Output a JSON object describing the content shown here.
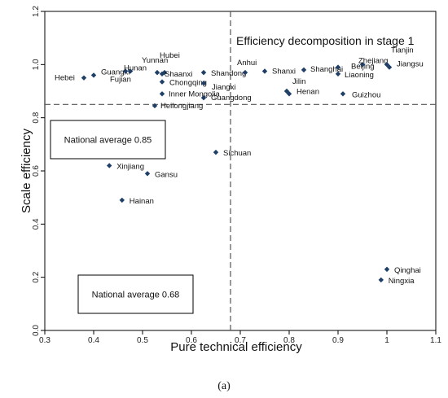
{
  "chart_data": {
    "type": "scatter",
    "xlabel": "Pure technical efficiency",
    "ylabel": "Scale efficiency",
    "xlim": [
      0.3,
      1.1
    ],
    "ylim": [
      0.0,
      1.2
    ],
    "x_ticks": [
      "0.3",
      "0.4",
      "0.5",
      "0.6",
      "0.7",
      "0.8",
      "0.9",
      "1",
      "1.1"
    ],
    "y_ticks": [
      "0.0",
      "0.2",
      "0.4",
      "0.6",
      "0.8",
      "1.0",
      "1.2"
    ],
    "annotation": "Efficiency decomposition in stage 1",
    "reference_lines": {
      "x_mean": 0.68,
      "y_mean": 0.85
    },
    "boxes": [
      {
        "label": "National average 0.85"
      },
      {
        "label": "National average 0.68"
      }
    ],
    "marker_color": "#1f3f66",
    "grid": false,
    "points": [
      {
        "name": "Hebei",
        "x": 0.38,
        "y": 0.95
      },
      {
        "name": "Guangxi",
        "x": 0.4,
        "y": 0.96
      },
      {
        "name": "Hunan",
        "x": 0.465,
        "y": 0.975
      },
      {
        "name": "Fujian",
        "x": 0.475,
        "y": 0.975
      },
      {
        "name": "Yunnan",
        "x": 0.53,
        "y": 0.97
      },
      {
        "name": "Hubei",
        "x": 0.545,
        "y": 0.97
      },
      {
        "name": "Shaanxi",
        "x": 0.54,
        "y": 0.965
      },
      {
        "name": "Chongqing",
        "x": 0.54,
        "y": 0.935
      },
      {
        "name": "Shandong",
        "x": 0.625,
        "y": 0.97
      },
      {
        "name": "Jiangxi",
        "x": 0.625,
        "y": 0.93
      },
      {
        "name": "Inner Mongolia",
        "x": 0.54,
        "y": 0.89
      },
      {
        "name": "Guangdong",
        "x": 0.625,
        "y": 0.875
      },
      {
        "name": "Heilongjiang",
        "x": 0.525,
        "y": 0.845
      },
      {
        "name": "Anhui",
        "x": 0.71,
        "y": 0.97
      },
      {
        "name": "Shanxi",
        "x": 0.75,
        "y": 0.975
      },
      {
        "name": "Jilin",
        "x": 0.795,
        "y": 0.9
      },
      {
        "name": "Henan",
        "x": 0.8,
        "y": 0.89
      },
      {
        "name": "Shanghai",
        "x": 0.83,
        "y": 0.98
      },
      {
        "name": "Beijing",
        "x": 0.9,
        "y": 0.99
      },
      {
        "name": "Zhejiang",
        "x": 0.95,
        "y": 1.0
      },
      {
        "name": "Tianjin",
        "x": 1.0,
        "y": 1.0
      },
      {
        "name": "Jiangsu",
        "x": 1.005,
        "y": 0.99
      },
      {
        "name": "Liaoning",
        "x": 0.9,
        "y": 0.965
      },
      {
        "name": "Guizhou",
        "x": 0.91,
        "y": 0.89
      },
      {
        "name": "Sichuan",
        "x": 0.65,
        "y": 0.67
      },
      {
        "name": "Xinjiang",
        "x": 0.432,
        "y": 0.62
      },
      {
        "name": "Gansu",
        "x": 0.51,
        "y": 0.59
      },
      {
        "name": "Hainan",
        "x": 0.458,
        "y": 0.49
      },
      {
        "name": "Qinghai",
        "x": 1.0,
        "y": 0.23
      },
      {
        "name": "Ningxia",
        "x": 0.988,
        "y": 0.19
      }
    ],
    "caption": "(a)"
  }
}
